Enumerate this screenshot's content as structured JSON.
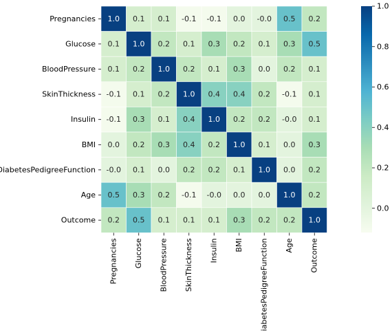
{
  "chart_data": {
    "type": "heatmap",
    "title": "",
    "xlabel": "",
    "ylabel": "",
    "variables": [
      "Pregnancies",
      "Glucose",
      "BloodPressure",
      "SkinThickness",
      "Insulin",
      "BMI",
      "DiabetesPedigreeFunction",
      "Age",
      "Outcome"
    ],
    "values": [
      [
        1.0,
        0.1,
        0.1,
        -0.1,
        -0.1,
        0.0,
        -0.0,
        0.5,
        0.2
      ],
      [
        0.1,
        1.0,
        0.2,
        0.1,
        0.3,
        0.2,
        0.1,
        0.3,
        0.5
      ],
      [
        0.1,
        0.2,
        1.0,
        0.2,
        0.1,
        0.3,
        0.0,
        0.2,
        0.1
      ],
      [
        -0.1,
        0.1,
        0.2,
        1.0,
        0.4,
        0.4,
        0.2,
        -0.1,
        0.1
      ],
      [
        -0.1,
        0.3,
        0.1,
        0.4,
        1.0,
        0.2,
        0.2,
        -0.0,
        0.1
      ],
      [
        0.0,
        0.2,
        0.3,
        0.4,
        0.2,
        1.0,
        0.1,
        0.0,
        0.3
      ],
      [
        -0.0,
        0.1,
        0.0,
        0.2,
        0.2,
        0.1,
        1.0,
        0.0,
        0.2
      ],
      [
        0.5,
        0.3,
        0.2,
        -0.1,
        -0.0,
        0.0,
        0.0,
        1.0,
        0.2
      ],
      [
        0.2,
        0.5,
        0.1,
        0.1,
        0.1,
        0.3,
        0.2,
        0.2,
        1.0
      ]
    ],
    "cell_labels": [
      [
        "1.0",
        "0.1",
        "0.1",
        "-0.1",
        "-0.1",
        "0.0",
        "-0.0",
        "0.5",
        "0.2"
      ],
      [
        "0.1",
        "1.0",
        "0.2",
        "0.1",
        "0.3",
        "0.2",
        "0.1",
        "0.3",
        "0.5"
      ],
      [
        "0.1",
        "0.2",
        "1.0",
        "0.2",
        "0.1",
        "0.3",
        "0.0",
        "0.2",
        "0.1"
      ],
      [
        "-0.1",
        "0.1",
        "0.2",
        "1.0",
        "0.4",
        "0.4",
        "0.2",
        "-0.1",
        "0.1"
      ],
      [
        "-0.1",
        "0.3",
        "0.1",
        "0.4",
        "1.0",
        "0.2",
        "0.2",
        "-0.0",
        "0.1"
      ],
      [
        "0.0",
        "0.2",
        "0.3",
        "0.4",
        "0.2",
        "1.0",
        "0.1",
        "0.0",
        "0.3"
      ],
      [
        "-0.0",
        "0.1",
        "0.0",
        "0.2",
        "0.2",
        "0.1",
        "1.0",
        "0.0",
        "0.2"
      ],
      [
        "0.5",
        "0.3",
        "0.2",
        "-0.1",
        "-0.0",
        "0.0",
        "0.0",
        "1.0",
        "0.2"
      ],
      [
        "0.2",
        "0.5",
        "0.1",
        "0.1",
        "0.1",
        "0.3",
        "0.2",
        "0.2",
        "1.0"
      ]
    ],
    "colormap": "YlGnBu",
    "colormap_stops": [
      "#f7fcf0",
      "#e0f3db",
      "#ccebc5",
      "#a8ddb5",
      "#7bccc4",
      "#4eb3d3",
      "#2b8cbe",
      "#0868ac",
      "#084081"
    ],
    "vmin": -0.12,
    "vmax": 1.0,
    "colorbar_ticks": [
      "0.0",
      "0.2",
      "0.4",
      "0.6",
      "0.8",
      "1.0"
    ],
    "linecolor": "#ffffff",
    "legend_position": "right"
  }
}
